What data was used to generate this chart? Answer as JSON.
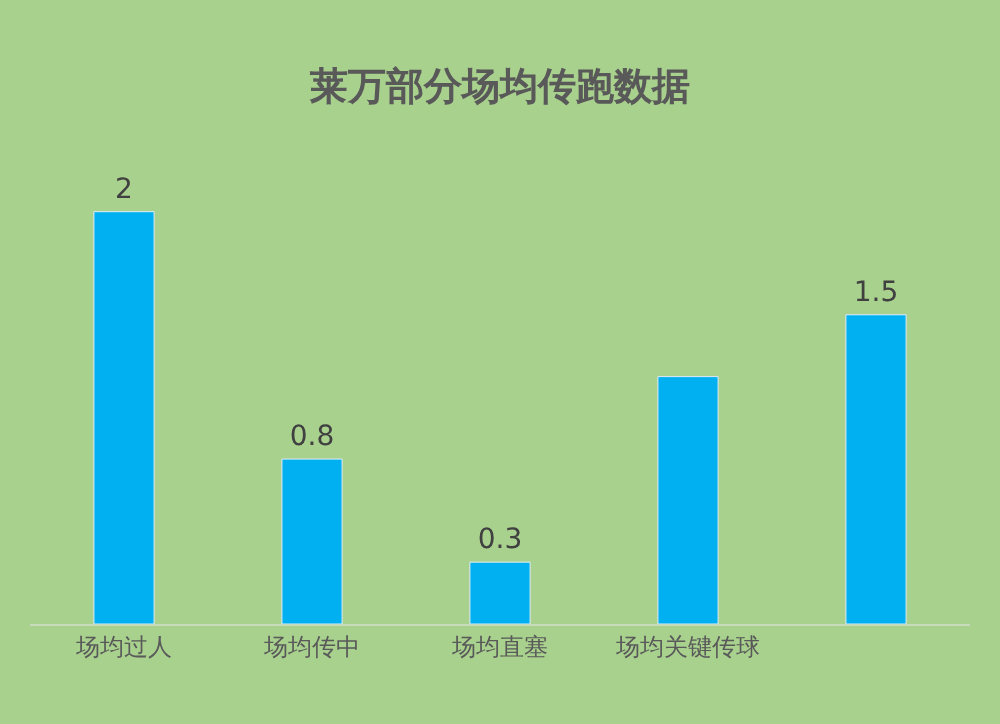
{
  "chart_data": {
    "type": "bar",
    "title": "莱万部分场均传跑数据",
    "categories": [
      "场均过人",
      "场均传中",
      "场均直塞",
      "场均关键传球",
      null
    ],
    "values": [
      2,
      0.8,
      0.3,
      1.2,
      1.5
    ],
    "value_labels": [
      "2",
      "0.8",
      "0.3",
      null,
      "1.5"
    ],
    "color": "#00b0f0",
    "grid": false,
    "legend": false,
    "tick_labels": "x"
  }
}
